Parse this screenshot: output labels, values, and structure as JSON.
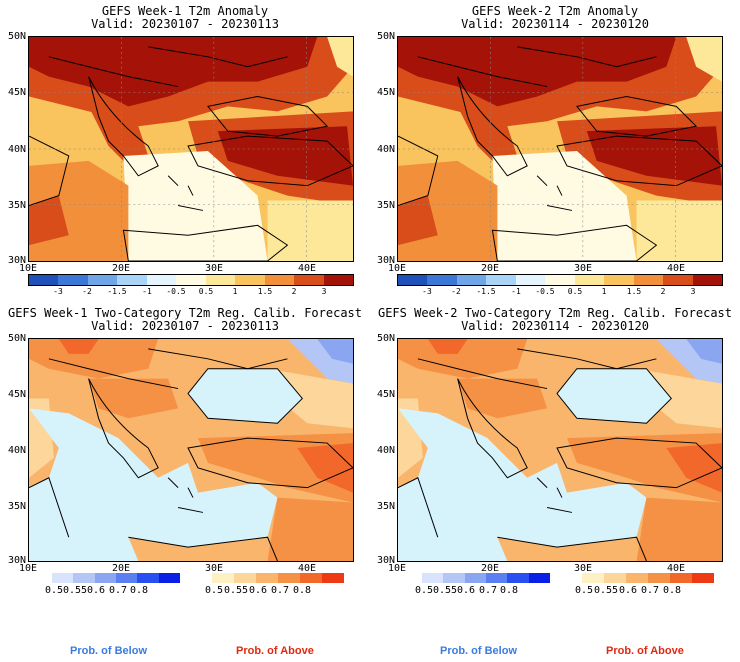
{
  "panels": [
    {
      "title": "GEFS Week-1 T2m Anomaly",
      "valid": "Valid: 20230107 - 20230113"
    },
    {
      "title": "GEFS Week-2 T2m Anomaly",
      "valid": "Valid: 20230114 - 20230120"
    },
    {
      "title": "GEFS Week-1 Two-Category T2m Reg. Calib. Forecast",
      "valid": "Valid: 20230107 - 20230113"
    },
    {
      "title": "GEFS Week-2 Two-Category T2m Reg. Calib. Forecast",
      "valid": "Valid: 20230114 - 20230120"
    }
  ],
  "lat_labels": [
    "50N",
    "45N",
    "40N",
    "35N",
    "30N"
  ],
  "lon_labels": [
    "10E",
    "20E",
    "30E",
    "40E"
  ],
  "anomaly_colorbar": {
    "labels": [
      "-3",
      "-2",
      "-1.5",
      "-1",
      "-0.5",
      "0.5",
      "1",
      "1.5",
      "2",
      "3"
    ],
    "colors": [
      "#1f52b8",
      "#3b78d6",
      "#6ea6e8",
      "#a9d4f5",
      "#e6f5fd",
      "#fffbe3",
      "#fde89a",
      "#f9c35d",
      "#f28f3a",
      "#d94d1a",
      "#a41208"
    ]
  },
  "prob_below": {
    "labels": [
      "0.5",
      "0.55",
      "0.6",
      "0.7",
      "0.8"
    ],
    "colors": [
      "#d9e3fb",
      "#b4c6f6",
      "#8ba6f0",
      "#5b7ff0",
      "#2a4ff0",
      "#0a1fe6"
    ],
    "caption": "Prob. of Below",
    "caption_color": "#3a7be0"
  },
  "prob_above": {
    "labels": [
      "0.5",
      "0.55",
      "0.6",
      "0.7",
      "0.8"
    ],
    "colors": [
      "#fdf0c2",
      "#fcd69a",
      "#f9b56c",
      "#f59145",
      "#f2682a",
      "#ee3a14"
    ],
    "caption": "Prob. of Above",
    "caption_color": "#e02a10"
  },
  "map_colors": {
    "land_grid": "#cccc99",
    "sea_prob": "#d6f2fb"
  }
}
